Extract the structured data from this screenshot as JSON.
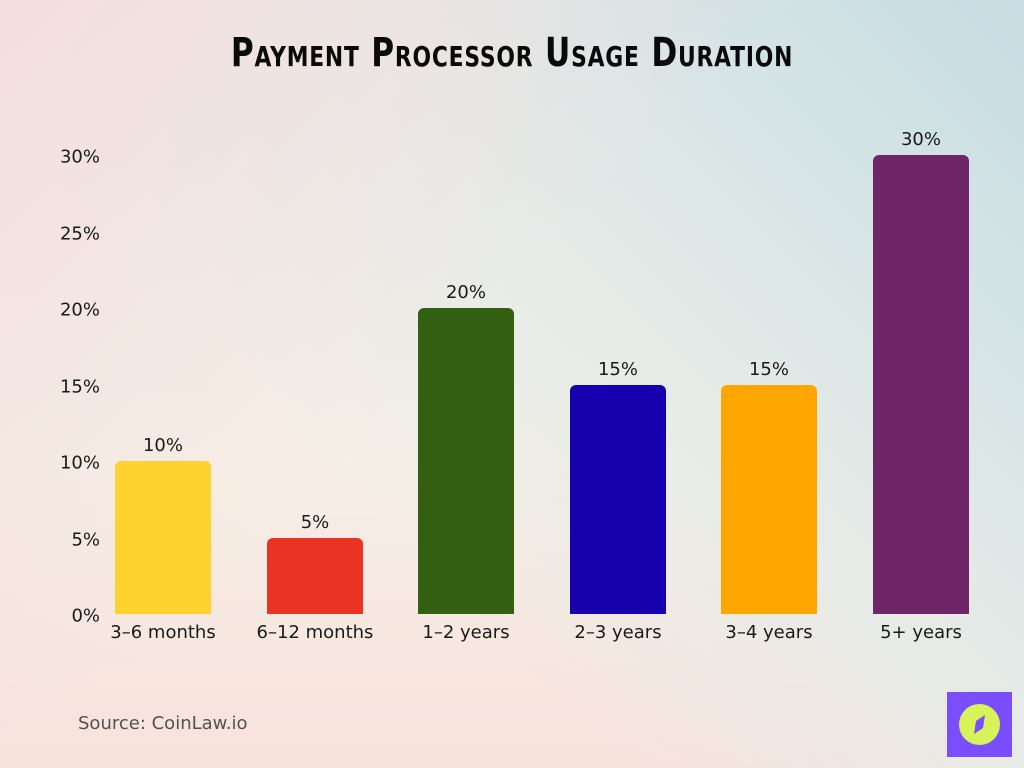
{
  "title": "Payment Processor Usage Duration",
  "source": "Source: CoinLaw.io",
  "logo": {
    "icon": "compass-icon",
    "bg_color": "#7a4dff",
    "fg_color": "#d8f25a"
  },
  "y_ticks": [
    "0%",
    "5%",
    "10%",
    "15%",
    "20%",
    "25%",
    "30%"
  ],
  "bars": [
    {
      "label": "3–6 months",
      "value": 10,
      "value_label": "10%",
      "color": "#fed330"
    },
    {
      "label": "6–12 months",
      "value": 5,
      "value_label": "5%",
      "color": "#e93323"
    },
    {
      "label": "1–2 years",
      "value": 20,
      "value_label": "20%",
      "color": "#325f10"
    },
    {
      "label": "2–3 years",
      "value": 15,
      "value_label": "15%",
      "color": "#1700ae"
    },
    {
      "label": "3–4 years",
      "value": 15,
      "value_label": "15%",
      "color": "#fea600"
    },
    {
      "label": "5+ years",
      "value": 30,
      "value_label": "30%",
      "color": "#6e2669"
    }
  ],
  "chart_data": {
    "type": "bar",
    "title": "Payment Processor Usage Duration",
    "categories": [
      "3–6 months",
      "6–12 months",
      "1–2 years",
      "2–3 years",
      "3–4 years",
      "5+ years"
    ],
    "values": [
      10,
      5,
      20,
      15,
      15,
      30
    ],
    "colors": [
      "#fed330",
      "#e93323",
      "#325f10",
      "#1700ae",
      "#fea600",
      "#6e2669"
    ],
    "xlabel": "",
    "ylabel": "",
    "ylim": [
      0,
      30
    ],
    "y_ticks": [
      0,
      5,
      10,
      15,
      20,
      25,
      30
    ],
    "y_tick_format": "percent",
    "data_labels": true,
    "grid": false,
    "legend": "none",
    "annotations": [
      "Source: CoinLaw.io"
    ]
  }
}
